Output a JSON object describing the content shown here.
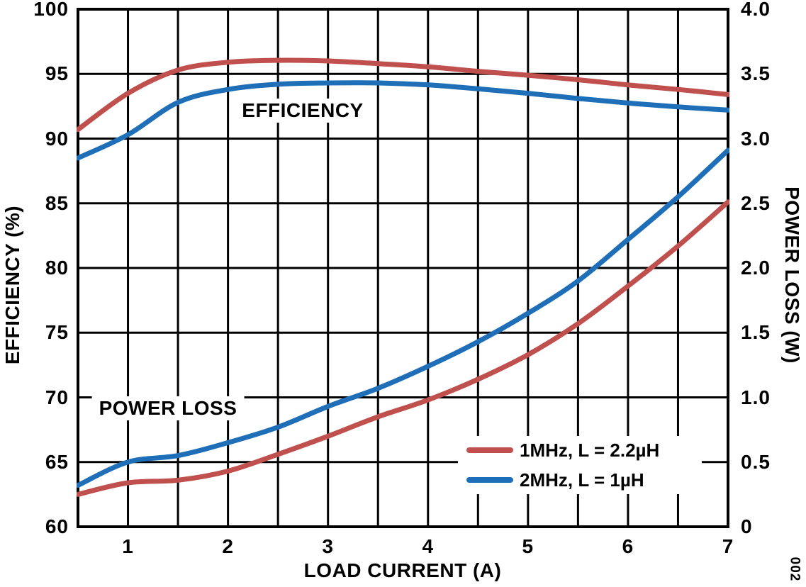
{
  "figure_number": "002",
  "colors": {
    "red": "#C0504D",
    "blue": "#1E6FB8",
    "axis": "#000000",
    "background": "#FFFFFF"
  },
  "chart_data": {
    "type": "line",
    "title": "",
    "xlabel": "LOAD CURRENT (A)",
    "ylabel_left": "EFFICIENCY (%)",
    "ylabel_right": "POWER LOSS (W)",
    "xlim": [
      0.5,
      7
    ],
    "ylim_left": [
      60,
      100
    ],
    "ylim_right": [
      0,
      4.0
    ],
    "x_grid_step": 0.5,
    "grid": true,
    "x_tick_values": [
      1,
      2,
      3,
      4,
      5,
      6,
      7
    ],
    "x_tick_labels": [
      "1",
      "2",
      "3",
      "4",
      "5",
      "6",
      "7"
    ],
    "y_left_tick_values": [
      100,
      95,
      90,
      85,
      80,
      75,
      70,
      65,
      60
    ],
    "y_left_tick_labels": [
      "100",
      "95",
      "90",
      "85",
      "80",
      "75",
      "70",
      "65",
      "60"
    ],
    "y_right_tick_values": [
      4.0,
      3.5,
      3.0,
      2.5,
      2.0,
      1.5,
      1.0,
      0.5,
      0
    ],
    "y_right_tick_labels": [
      "4.0",
      "3.5",
      "3.0",
      "2.5",
      "2.0",
      "1.5",
      "1.0",
      "0.5",
      "0"
    ],
    "x": [
      0.5,
      1,
      1.5,
      2,
      2.5,
      3,
      3.5,
      4,
      4.5,
      5,
      5.5,
      6,
      6.5,
      7
    ],
    "series": [
      {
        "name": "1MHz, L = 2.2µH",
        "group": "EFFICIENCY",
        "axis": "left",
        "color_key": "red",
        "values": [
          90.7,
          93.5,
          95.3,
          95.9,
          96.05,
          96.0,
          95.8,
          95.55,
          95.2,
          94.9,
          94.55,
          94.15,
          93.8,
          93.4
        ]
      },
      {
        "name": "2MHz, L = 1µH",
        "group": "EFFICIENCY",
        "axis": "left",
        "color_key": "blue",
        "values": [
          88.5,
          90.3,
          92.8,
          93.8,
          94.2,
          94.3,
          94.3,
          94.15,
          93.85,
          93.5,
          93.1,
          92.75,
          92.45,
          92.2
        ]
      },
      {
        "name": "1MHz, L = 2.2µH",
        "group": "POWER LOSS",
        "axis": "right",
        "color_key": "red",
        "values": [
          0.25,
          0.34,
          0.36,
          0.43,
          0.56,
          0.7,
          0.85,
          0.98,
          1.14,
          1.33,
          1.57,
          1.86,
          2.17,
          2.51
        ]
      },
      {
        "name": "2MHz, L = 1µH",
        "group": "POWER LOSS",
        "axis": "right",
        "color_key": "blue",
        "values": [
          0.32,
          0.5,
          0.55,
          0.65,
          0.77,
          0.93,
          1.07,
          1.24,
          1.43,
          1.65,
          1.9,
          2.22,
          2.55,
          2.91
        ]
      }
    ],
    "annotations": {
      "efficiency": "EFFICIENCY",
      "power_loss": "POWER LOSS"
    },
    "legend": {
      "position": "bottom-right",
      "entries": [
        {
          "label": "1MHz, L = 2.2µH",
          "color_key": "red"
        },
        {
          "label": "2MHz, L = 1µH",
          "color_key": "blue"
        }
      ]
    }
  }
}
